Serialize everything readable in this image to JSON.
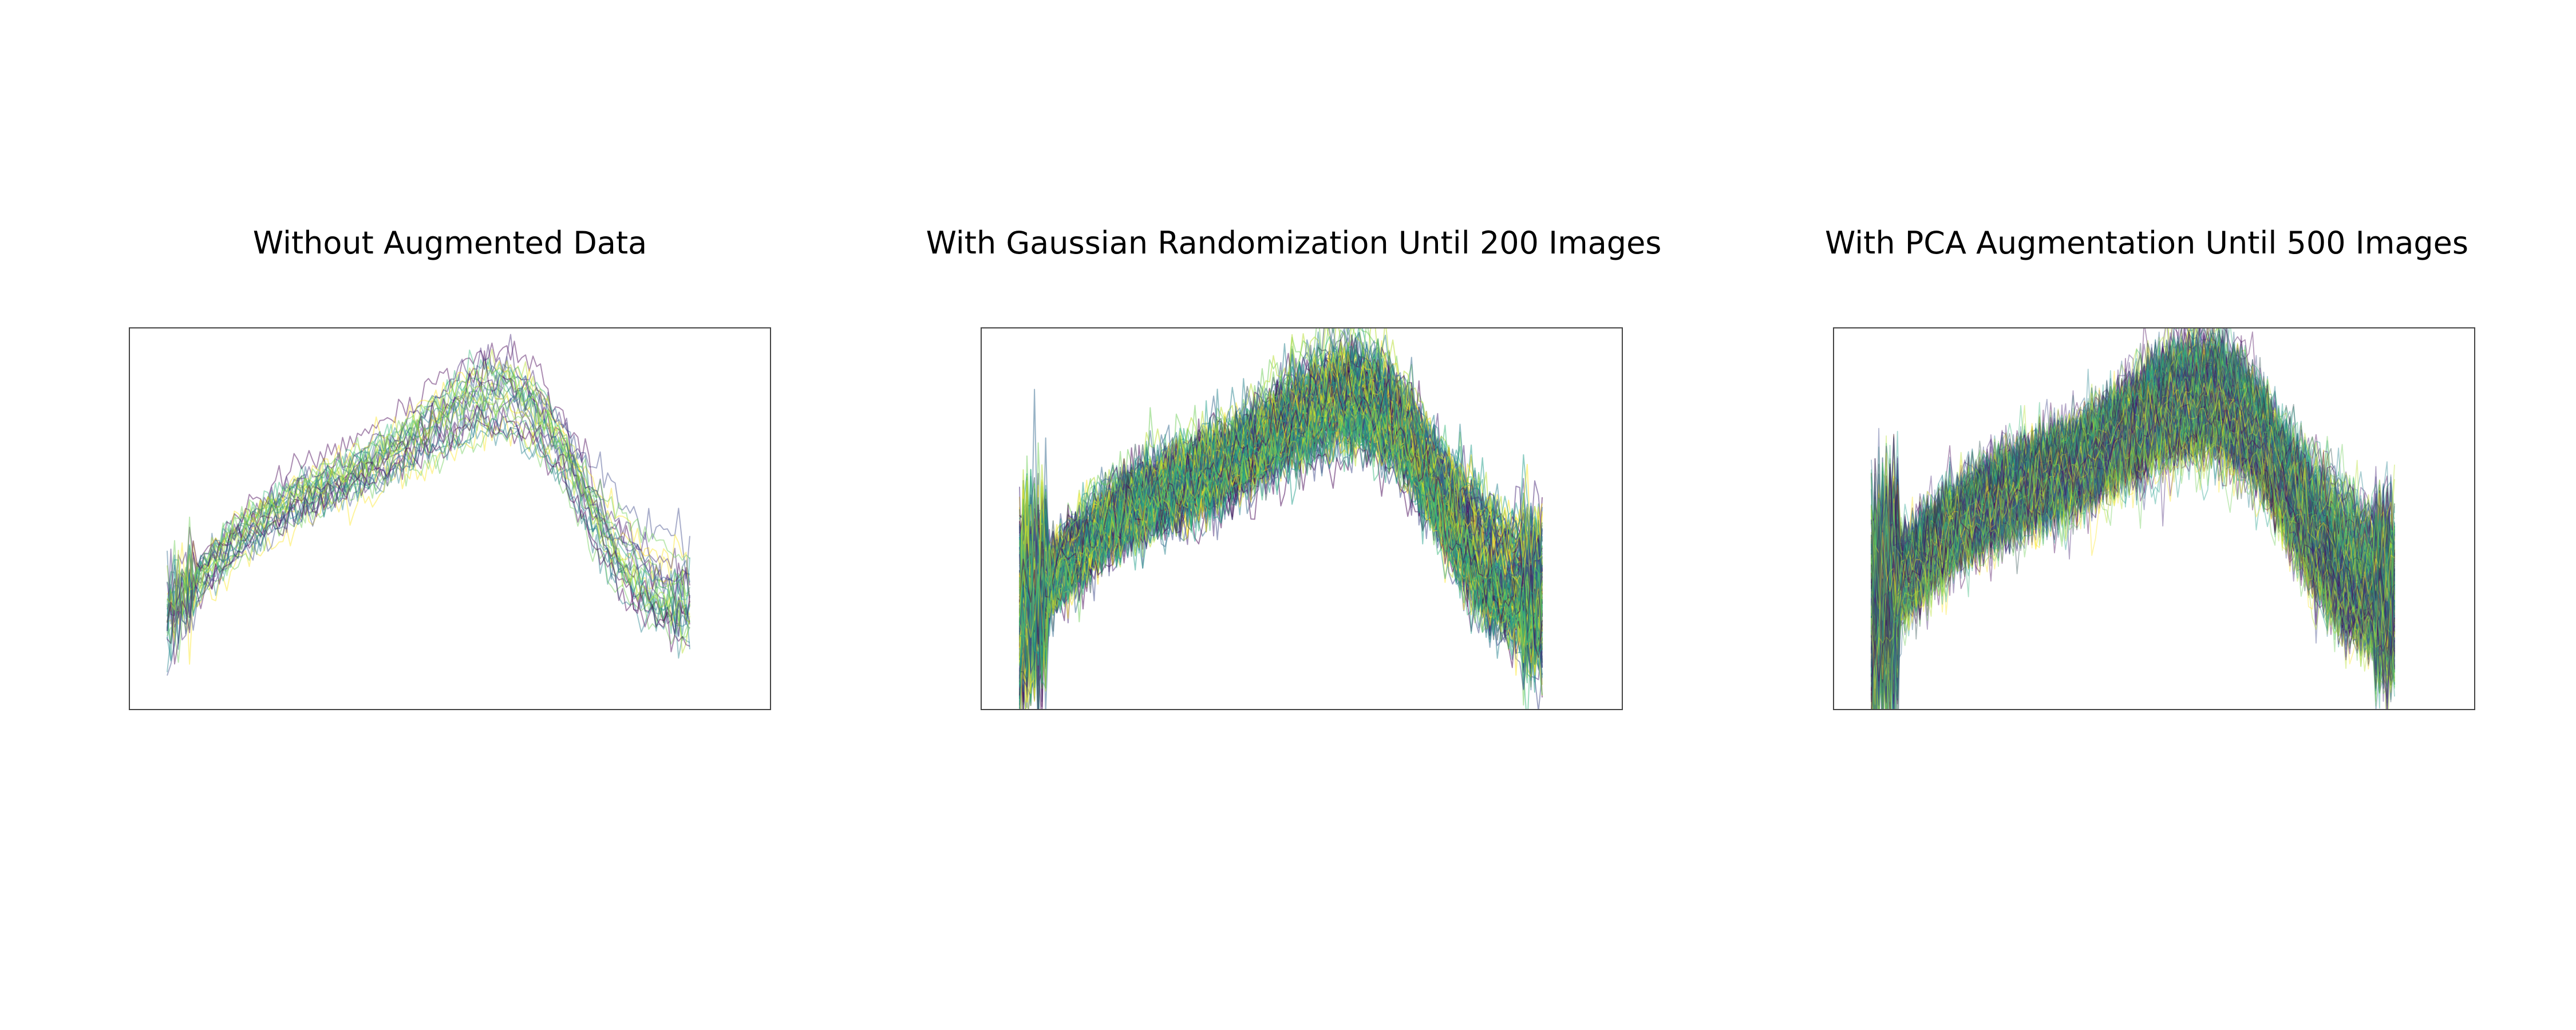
{
  "chart_data": [
    {
      "type": "line",
      "title": "Without Augmented Data",
      "xlabel": "",
      "ylabel": "",
      "axes_visible": false,
      "grid": false,
      "legend": "none",
      "colormap": "viridis",
      "line_count": 30,
      "x": [
        0,
        5,
        10,
        15,
        20,
        25,
        30,
        35,
        40,
        45,
        50,
        55,
        60,
        65,
        70,
        75,
        80,
        85,
        90,
        95,
        100
      ],
      "series": [
        {
          "values": [
            0.3,
            0.38,
            0.45,
            0.52,
            0.57,
            0.6,
            0.63,
            0.66,
            0.7,
            0.74,
            0.79,
            0.83,
            0.86,
            0.87,
            0.83,
            0.72,
            0.56,
            0.41,
            0.31,
            0.27,
            0.25
          ]
        },
        {
          "values": [
            0.29,
            0.36,
            0.43,
            0.49,
            0.54,
            0.58,
            0.61,
            0.64,
            0.67,
            0.71,
            0.75,
            0.79,
            0.82,
            0.83,
            0.8,
            0.75,
            0.68,
            0.62,
            0.56,
            0.51,
            0.48
          ]
        },
        {
          "values": [
            0.32,
            0.4,
            0.47,
            0.53,
            0.58,
            0.61,
            0.64,
            0.67,
            0.71,
            0.76,
            0.82,
            0.88,
            0.93,
            0.94,
            0.89,
            0.78,
            0.62,
            0.46,
            0.35,
            0.3,
            0.28
          ]
        },
        {
          "values": [
            0.28,
            0.35,
            0.42,
            0.48,
            0.53,
            0.57,
            0.6,
            0.62,
            0.65,
            0.68,
            0.71,
            0.74,
            0.76,
            0.76,
            0.73,
            0.66,
            0.55,
            0.44,
            0.36,
            0.32,
            0.3
          ]
        }
      ]
    },
    {
      "type": "line",
      "title": "With Gaussian Randomization Until 200 Images",
      "xlabel": "",
      "ylabel": "",
      "axes_visible": false,
      "grid": false,
      "legend": "none",
      "colormap": "viridis",
      "line_count": 200,
      "x": [
        0,
        5,
        10,
        15,
        20,
        25,
        30,
        35,
        40,
        45,
        50,
        55,
        60,
        65,
        70,
        75,
        80,
        85,
        90,
        95,
        100
      ],
      "series": [
        {
          "values": [
            0.3,
            0.38,
            0.45,
            0.52,
            0.57,
            0.6,
            0.63,
            0.66,
            0.7,
            0.74,
            0.79,
            0.83,
            0.86,
            0.87,
            0.83,
            0.72,
            0.56,
            0.41,
            0.31,
            0.27,
            0.25
          ]
        },
        {
          "values": [
            0.29,
            0.36,
            0.43,
            0.49,
            0.54,
            0.58,
            0.61,
            0.64,
            0.67,
            0.71,
            0.75,
            0.79,
            0.82,
            0.83,
            0.8,
            0.75,
            0.68,
            0.62,
            0.56,
            0.51,
            0.48
          ]
        },
        {
          "values": [
            0.32,
            0.4,
            0.47,
            0.53,
            0.58,
            0.61,
            0.64,
            0.67,
            0.71,
            0.76,
            0.82,
            0.88,
            0.93,
            0.94,
            0.89,
            0.78,
            0.62,
            0.46,
            0.35,
            0.3,
            0.28
          ]
        },
        {
          "values": [
            0.28,
            0.35,
            0.42,
            0.48,
            0.53,
            0.57,
            0.6,
            0.62,
            0.65,
            0.68,
            0.71,
            0.74,
            0.76,
            0.76,
            0.73,
            0.66,
            0.55,
            0.44,
            0.36,
            0.32,
            0.3
          ]
        }
      ]
    },
    {
      "type": "line",
      "title": "With PCA Augmentation Until 500 Images",
      "xlabel": "",
      "ylabel": "",
      "axes_visible": false,
      "grid": false,
      "legend": "none",
      "colormap": "viridis",
      "line_count": 500,
      "x": [
        0,
        5,
        10,
        15,
        20,
        25,
        30,
        35,
        40,
        45,
        50,
        55,
        60,
        65,
        70,
        75,
        80,
        85,
        90,
        95,
        100
      ],
      "series": [
        {
          "values": [
            0.3,
            0.38,
            0.45,
            0.52,
            0.57,
            0.6,
            0.63,
            0.66,
            0.7,
            0.74,
            0.79,
            0.83,
            0.86,
            0.87,
            0.83,
            0.72,
            0.56,
            0.41,
            0.31,
            0.27,
            0.25
          ]
        },
        {
          "values": [
            0.29,
            0.36,
            0.43,
            0.49,
            0.54,
            0.58,
            0.61,
            0.64,
            0.67,
            0.71,
            0.75,
            0.79,
            0.82,
            0.83,
            0.8,
            0.75,
            0.68,
            0.62,
            0.56,
            0.51,
            0.48
          ]
        },
        {
          "values": [
            0.32,
            0.4,
            0.47,
            0.53,
            0.58,
            0.61,
            0.64,
            0.67,
            0.71,
            0.76,
            0.82,
            0.88,
            0.93,
            0.94,
            0.89,
            0.78,
            0.62,
            0.46,
            0.35,
            0.3,
            0.28
          ]
        },
        {
          "values": [
            0.28,
            0.35,
            0.42,
            0.48,
            0.53,
            0.57,
            0.6,
            0.62,
            0.65,
            0.68,
            0.71,
            0.74,
            0.76,
            0.76,
            0.73,
            0.66,
            0.55,
            0.44,
            0.36,
            0.32,
            0.3
          ]
        }
      ]
    }
  ],
  "palette": [
    "#440154",
    "#482878",
    "#3e4989",
    "#31688e",
    "#26828e",
    "#1f9e89",
    "#35b779",
    "#6ece58",
    "#b5de2b",
    "#fde725",
    "#2f4f4f"
  ]
}
